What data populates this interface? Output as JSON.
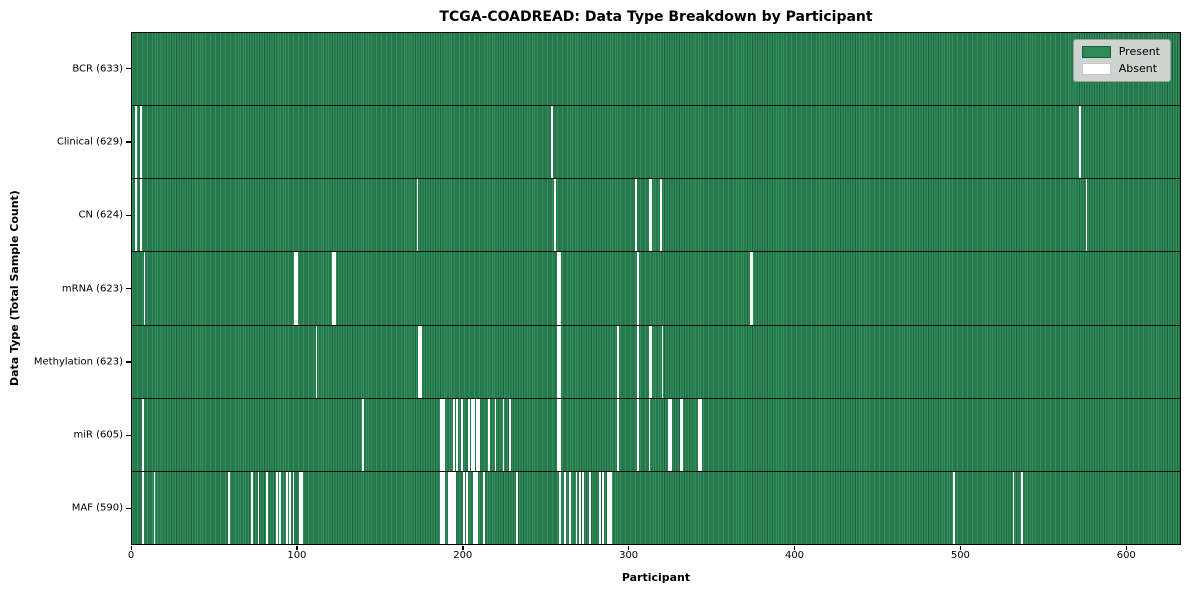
{
  "chart_data": {
    "type": "heatmap",
    "title": "TCGA-COADREAD: Data Type Breakdown by Participant",
    "xlabel": "Participant",
    "ylabel": "Data Type (Total Sample Count)",
    "xlim": [
      0,
      633
    ],
    "x_ticks": [
      0,
      100,
      200,
      300,
      400,
      500,
      600
    ],
    "n_participants": 633,
    "grid": false,
    "colors": {
      "present": "#2e8b57",
      "present_edge": "#1e6040",
      "absent": "#ffffff",
      "frame": "#000000",
      "legend_bg": "#d9dcd9"
    },
    "legend": {
      "position": "upper right",
      "entries": [
        {
          "label": "Present",
          "color": "#2e8b57"
        },
        {
          "label": "Absent",
          "color": "#ffffff"
        }
      ]
    },
    "rows": [
      {
        "label": "BCR (633)",
        "data_type": "BCR",
        "count": 633,
        "absent_participants": []
      },
      {
        "label": "Clinical (629)",
        "data_type": "Clinical",
        "count": 629,
        "absent_participants": [
          2,
          5,
          253,
          572
        ]
      },
      {
        "label": "CN (624)",
        "data_type": "CN",
        "count": 624,
        "absent_participants": [
          2,
          5,
          172,
          255,
          304,
          312,
          313,
          319,
          576
        ]
      },
      {
        "label": "mRNA (623)",
        "data_type": "mRNA",
        "count": 623,
        "absent_participants": [
          7,
          98,
          99,
          121,
          122,
          257,
          258,
          305,
          373,
          374
        ]
      },
      {
        "label": "Methylation (623)",
        "data_type": "Methylation",
        "count": 623,
        "absent_participants": [
          111,
          173,
          174,
          257,
          258,
          293,
          305,
          312,
          313,
          320
        ]
      },
      {
        "label": "miR (605)",
        "data_type": "miR",
        "count": 605,
        "absent_participants": [
          6,
          139,
          186,
          187,
          188,
          194,
          196,
          199,
          203,
          205,
          206,
          208,
          209,
          215,
          219,
          224,
          228,
          257,
          258,
          293,
          305,
          312,
          324,
          325,
          331,
          332,
          342,
          343
        ]
      },
      {
        "label": "MAF (590)",
        "data_type": "MAF",
        "count": 590,
        "absent_participants": [
          6,
          13,
          58,
          72,
          76,
          81,
          87,
          89,
          93,
          95,
          97,
          101,
          102,
          186,
          187,
          188,
          191,
          192,
          193,
          194,
          195,
          200,
          202,
          206,
          207,
          208,
          212,
          232,
          258,
          261,
          264,
          268,
          270,
          272,
          276,
          282,
          284,
          287,
          288,
          289,
          496,
          532,
          537
        ]
      }
    ]
  }
}
